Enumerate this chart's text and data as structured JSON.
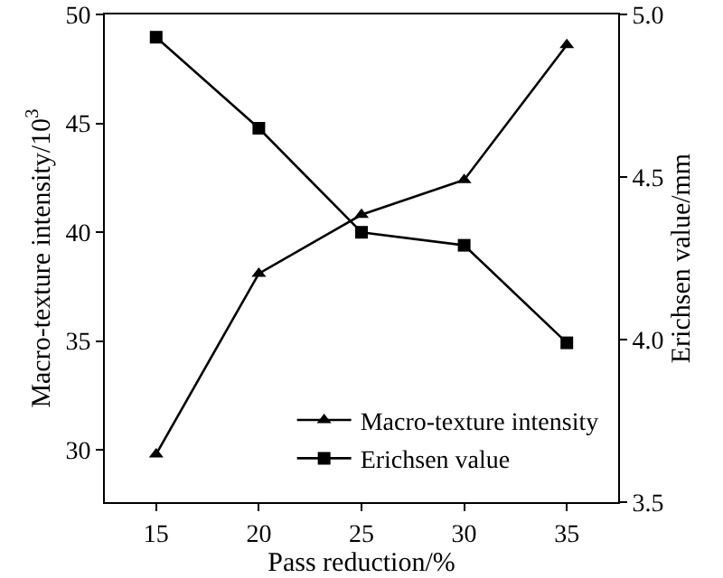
{
  "chart_data": {
    "type": "line",
    "xlabel": "Pass reduction/%",
    "ylabel": "Macro-texture intensity/10$^{3}$",
    "y2label": "Erichsen value/mm",
    "x": [
      15,
      20,
      25,
      30,
      35
    ],
    "series": [
      {
        "name": "Macro-texture intensity",
        "color": "#000000",
        "marker": "triangle",
        "values": [
          29.8,
          38.1,
          40.8,
          42.4,
          48.6
        ]
      },
      {
        "name": "Erichsen value",
        "color": "#000000",
        "marker": "square",
        "axis": "y2",
        "values": [
          4.93,
          4.65,
          4.33,
          4.29,
          3.99
        ]
      }
    ],
    "xlim": [
      12.5,
      37.5
    ],
    "xticks": [
      15,
      20,
      25,
      30,
      35
    ],
    "ylim": [
      27.6,
      50
    ],
    "yticks": [
      30,
      35,
      40,
      45,
      50
    ],
    "y2lim": [
      3.5,
      5.0
    ],
    "y2ticks": [
      {
        "value": 3.5,
        "label": "3.5"
      },
      {
        "value": 4.0,
        "label": "4.0"
      },
      {
        "value": 4.5,
        "label": "4.5"
      },
      {
        "value": 5.0,
        "label": "5.0"
      }
    ],
    "grid": false,
    "legend": "bottom right",
    "line_style": "solid"
  }
}
